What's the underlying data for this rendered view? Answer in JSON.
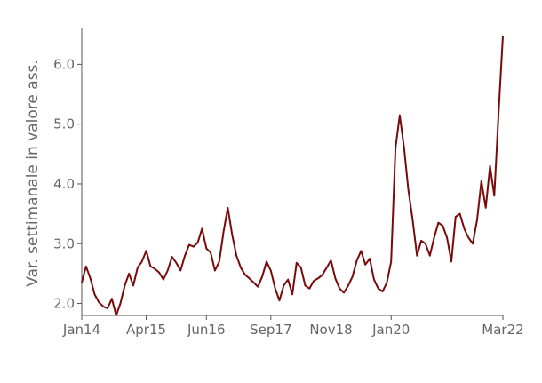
{
  "chart_data": {
    "type": "line",
    "title": "",
    "xlabel": "",
    "ylabel": "Var. settimanale in valore ass.",
    "grid": false,
    "legend": "none",
    "xlim": [
      "2014-01",
      "2022-03"
    ],
    "ylim": [
      1.8,
      6.6
    ],
    "x_ticks": [
      {
        "label": "Jan14",
        "date": "2014-01"
      },
      {
        "label": "Apr15",
        "date": "2015-04"
      },
      {
        "label": "Jun16",
        "date": "2016-06"
      },
      {
        "label": "Sep17",
        "date": "2017-09"
      },
      {
        "label": "Nov18",
        "date": "2018-11"
      },
      {
        "label": "Jan20",
        "date": "2020-01"
      },
      {
        "label": "Mar22",
        "date": "2022-03"
      }
    ],
    "y_ticks": [
      {
        "label": "2.0",
        "value": 2.0
      },
      {
        "label": "3.0",
        "value": 3.0
      },
      {
        "label": "4.0",
        "value": 4.0
      },
      {
        "label": "5.0",
        "value": 5.0
      },
      {
        "label": "6.0",
        "value": 6.0
      }
    ],
    "series": [
      {
        "color": "#7a0a0a",
        "points": [
          [
            "2014-01",
            2.35
          ],
          [
            "2014-02",
            2.62
          ],
          [
            "2014-03",
            2.42
          ],
          [
            "2014-04",
            2.15
          ],
          [
            "2014-05",
            2.02
          ],
          [
            "2014-06",
            1.95
          ],
          [
            "2014-07",
            1.92
          ],
          [
            "2014-08",
            2.08
          ],
          [
            "2014-09",
            1.8
          ],
          [
            "2014-10",
            2.0
          ],
          [
            "2014-11",
            2.3
          ],
          [
            "2014-12",
            2.5
          ],
          [
            "2015-01",
            2.3
          ],
          [
            "2015-02",
            2.6
          ],
          [
            "2015-03",
            2.7
          ],
          [
            "2015-04",
            2.88
          ],
          [
            "2015-05",
            2.62
          ],
          [
            "2015-06",
            2.58
          ],
          [
            "2015-07",
            2.52
          ],
          [
            "2015-08",
            2.4
          ],
          [
            "2015-09",
            2.55
          ],
          [
            "2015-10",
            2.78
          ],
          [
            "2015-11",
            2.68
          ],
          [
            "2015-12",
            2.55
          ],
          [
            "2016-01",
            2.8
          ],
          [
            "2016-02",
            2.98
          ],
          [
            "2016-03",
            2.95
          ],
          [
            "2016-04",
            3.02
          ],
          [
            "2016-05",
            3.25
          ],
          [
            "2016-06",
            2.92
          ],
          [
            "2016-07",
            2.85
          ],
          [
            "2016-08",
            2.55
          ],
          [
            "2016-09",
            2.7
          ],
          [
            "2016-10",
            3.2
          ],
          [
            "2016-11",
            3.6
          ],
          [
            "2016-12",
            3.15
          ],
          [
            "2017-01",
            2.8
          ],
          [
            "2017-02",
            2.6
          ],
          [
            "2017-03",
            2.48
          ],
          [
            "2017-04",
            2.42
          ],
          [
            "2017-05",
            2.35
          ],
          [
            "2017-06",
            2.28
          ],
          [
            "2017-07",
            2.45
          ],
          [
            "2017-08",
            2.7
          ],
          [
            "2017-09",
            2.55
          ],
          [
            "2017-10",
            2.25
          ],
          [
            "2017-11",
            2.05
          ],
          [
            "2017-12",
            2.3
          ],
          [
            "2018-01",
            2.4
          ],
          [
            "2018-02",
            2.15
          ],
          [
            "2018-03",
            2.68
          ],
          [
            "2018-04",
            2.6
          ],
          [
            "2018-05",
            2.3
          ],
          [
            "2018-06",
            2.25
          ],
          [
            "2018-07",
            2.38
          ],
          [
            "2018-08",
            2.42
          ],
          [
            "2018-09",
            2.48
          ],
          [
            "2018-10",
            2.6
          ],
          [
            "2018-11",
            2.72
          ],
          [
            "2018-12",
            2.42
          ],
          [
            "2019-01",
            2.25
          ],
          [
            "2019-02",
            2.18
          ],
          [
            "2019-03",
            2.3
          ],
          [
            "2019-04",
            2.45
          ],
          [
            "2019-05",
            2.72
          ],
          [
            "2019-06",
            2.88
          ],
          [
            "2019-07",
            2.65
          ],
          [
            "2019-08",
            2.75
          ],
          [
            "2019-09",
            2.4
          ],
          [
            "2019-10",
            2.25
          ],
          [
            "2019-11",
            2.2
          ],
          [
            "2019-12",
            2.35
          ],
          [
            "2020-01",
            2.7
          ],
          [
            "2020-02",
            4.6
          ],
          [
            "2020-03",
            5.15
          ],
          [
            "2020-04",
            4.6
          ],
          [
            "2020-05",
            3.9
          ],
          [
            "2020-06",
            3.4
          ],
          [
            "2020-07",
            2.8
          ],
          [
            "2020-08",
            3.05
          ],
          [
            "2020-09",
            3.0
          ],
          [
            "2020-10",
            2.8
          ],
          [
            "2020-11",
            3.1
          ],
          [
            "2020-12",
            3.35
          ],
          [
            "2021-01",
            3.3
          ],
          [
            "2021-02",
            3.1
          ],
          [
            "2021-03",
            2.7
          ],
          [
            "2021-04",
            3.45
          ],
          [
            "2021-05",
            3.5
          ],
          [
            "2021-06",
            3.25
          ],
          [
            "2021-07",
            3.1
          ],
          [
            "2021-08",
            3.0
          ],
          [
            "2021-09",
            3.4
          ],
          [
            "2021-10",
            4.05
          ],
          [
            "2021-11",
            3.6
          ],
          [
            "2021-12",
            4.3
          ],
          [
            "2022-01",
            3.8
          ],
          [
            "2022-02",
            5.2
          ],
          [
            "2022-03",
            6.48
          ]
        ]
      }
    ]
  }
}
